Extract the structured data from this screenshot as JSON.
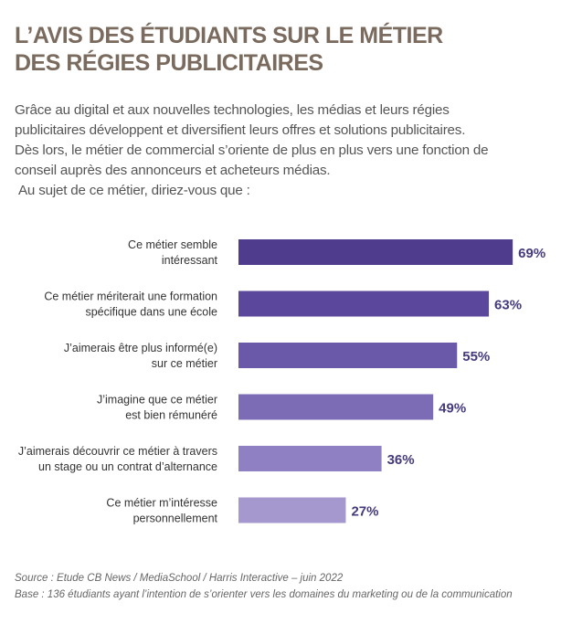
{
  "title_lines": [
    "L’AVIS DES ÉTUDIANTS SUR LE MÉTIER",
    "DES RÉGIES PUBLICITAIRES"
  ],
  "intro_lines": [
    "Grâce au digital et aux nouvelles technologies, les médias et leurs régies",
    "publicitaires développent et diversifient leurs offres et solutions publicitaires.",
    "Dès lors, le métier de commercial s’oriente de plus en plus vers une fonction de",
    "conseil auprès des annonceurs et acheteurs médias."
  ],
  "question": "Au sujet de ce métier, diriez-vous que :",
  "chart_data": {
    "type": "bar",
    "orientation": "horizontal",
    "categories": [
      [
        "Ce métier semble",
        "intéressant"
      ],
      [
        "Ce métier mériterait une formation",
        "spécifique dans une école"
      ],
      [
        "J’aimerais être plus informé(e)",
        "sur ce métier"
      ],
      [
        "J’imagine que ce métier",
        "est bien rémunéré"
      ],
      [
        "J’aimerais découvrir ce métier à travers",
        "un stage ou un contrat d’alternance"
      ],
      [
        "Ce métier m’intéresse",
        "personnellement"
      ]
    ],
    "values": [
      69,
      63,
      55,
      49,
      36,
      27
    ],
    "value_labels": [
      "69%",
      "63%",
      "55%",
      "49%",
      "36%",
      "27%"
    ],
    "colors": [
      "#4f3c8c",
      "#5b479b",
      "#6a58a8",
      "#7c6bb5",
      "#8e80c2",
      "#a498cf"
    ],
    "label_color": "#463a7c",
    "grid": false
  },
  "footer": {
    "source": "Source : Etude CB News / MediaSchool / Harris Interactive – juin 2022",
    "base": "Base : 136 étudiants ayant l’intention de s’orienter vers les domaines du marketing ou de la communication"
  }
}
